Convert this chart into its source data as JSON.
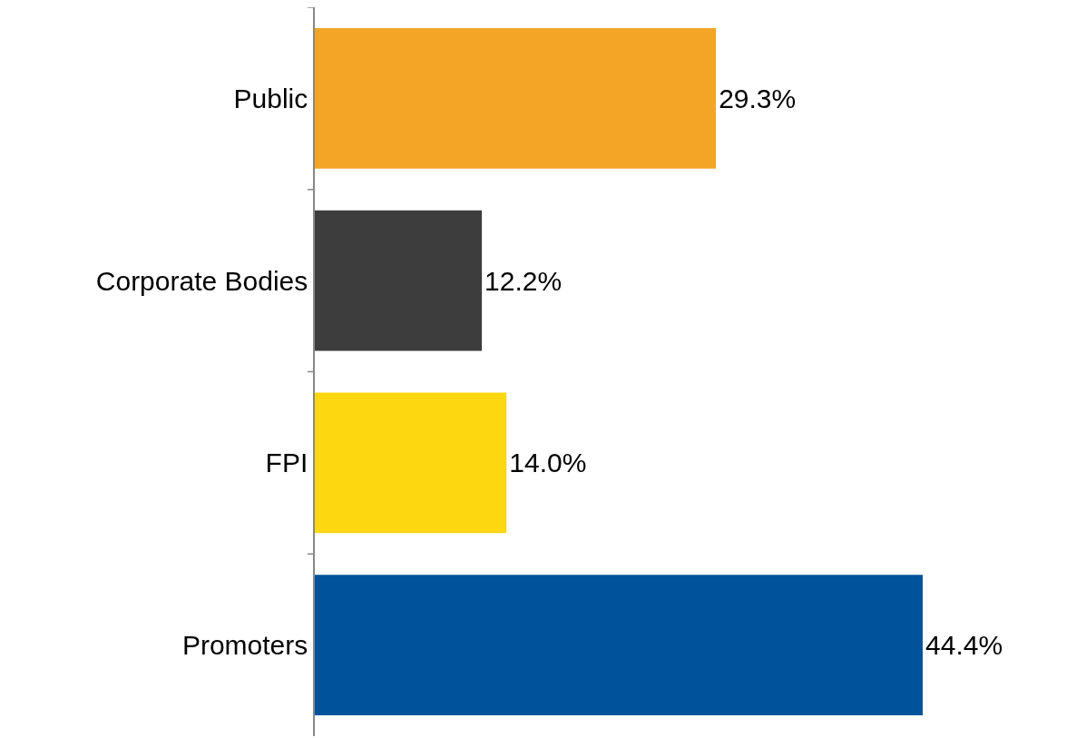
{
  "chart_data": {
    "type": "bar",
    "orientation": "horizontal",
    "categories": [
      "Public",
      "Corporate Bodies",
      "FPI",
      "Promoters"
    ],
    "values": [
      29.3,
      12.2,
      14.0,
      44.4
    ],
    "value_labels": [
      "29.3%",
      "12.2%",
      "14.0%",
      "44.4%"
    ],
    "colors": [
      "#f4a526",
      "#3d3d3d",
      "#fdd710",
      "#00529b"
    ]
  }
}
